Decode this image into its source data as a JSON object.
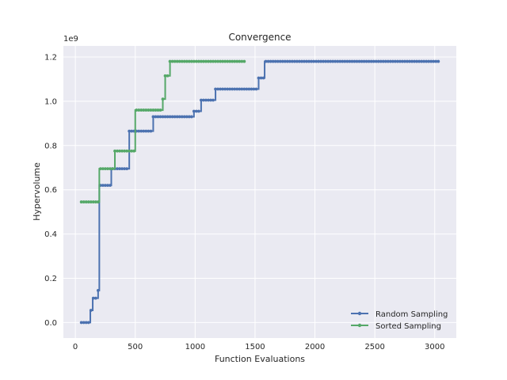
{
  "chart_data": {
    "type": "line",
    "title": "Convergence",
    "xlabel": "Function Evaluations",
    "ylabel": "Hypervolume",
    "y_scale_label": "1e9",
    "xlim": [
      -100,
      3180
    ],
    "ylim": [
      -0.07,
      1.25
    ],
    "x_ticks": [
      0,
      500,
      1000,
      1500,
      2000,
      2500,
      3000
    ],
    "y_ticks": [
      0.0,
      0.2,
      0.4,
      0.6,
      0.8,
      1.0,
      1.2
    ],
    "y_tick_labels": [
      "0.0",
      "0.2",
      "0.4",
      "0.6",
      "0.8",
      "1.0",
      "1.2"
    ],
    "x_tick_labels": [
      "0",
      "500",
      "1000",
      "1500",
      "2000",
      "2500",
      "3000"
    ],
    "grid": true,
    "legend_position": "lower-right",
    "colors": {
      "background": "#eaeaf2",
      "random": "#4c72b0",
      "sorted": "#55a868"
    },
    "series": [
      {
        "name": "Random Sampling",
        "color": "#4c72b0",
        "steps": [
          [
            50,
            0.0
          ],
          [
            125,
            0.055
          ],
          [
            145,
            0.11
          ],
          [
            190,
            0.145
          ],
          [
            200,
            0.62
          ],
          [
            300,
            0.695
          ],
          [
            450,
            0.865
          ],
          [
            650,
            0.93
          ],
          [
            990,
            0.955
          ],
          [
            1050,
            1.005
          ],
          [
            1170,
            1.055
          ],
          [
            1530,
            1.105
          ],
          [
            1580,
            1.18
          ],
          [
            3030,
            1.18
          ]
        ]
      },
      {
        "name": "Sorted Sampling",
        "color": "#55a868",
        "steps": [
          [
            50,
            0.545
          ],
          [
            200,
            0.695
          ],
          [
            330,
            0.775
          ],
          [
            500,
            0.96
          ],
          [
            730,
            1.01
          ],
          [
            750,
            1.115
          ],
          [
            790,
            1.18
          ],
          [
            1410,
            1.18
          ]
        ]
      }
    ]
  }
}
